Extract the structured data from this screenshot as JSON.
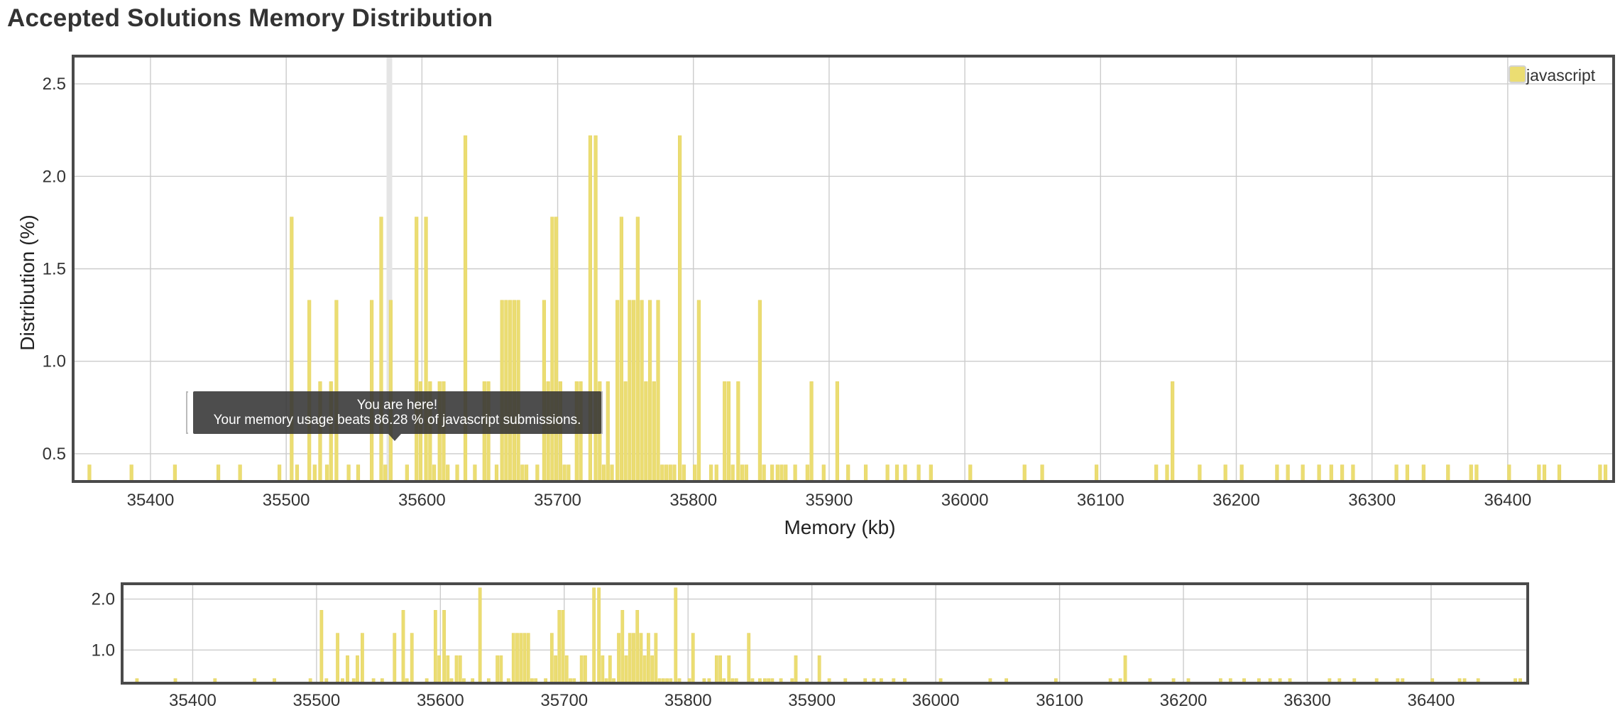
{
  "page": {
    "title": "Accepted Solutions Memory Distribution"
  },
  "tooltip": {
    "line1": "You are here!",
    "line2": "Your memory usage beats 86.28 % of javascript submissions."
  },
  "colors": {
    "bar": "#ebdd72",
    "bar_stroke": "#e6d466",
    "grid": "#cccccc",
    "frame": "#4a4a4a",
    "highlight": "#e5e5e5"
  },
  "chart_data": [
    {
      "type": "bar",
      "role": "main",
      "title": "",
      "xlabel": "Memory (kb)",
      "ylabel": "Distribution (%)",
      "xlim": [
        35343,
        36478
      ],
      "ylim": [
        0.35,
        2.65
      ],
      "xticks": [
        35400,
        35500,
        35600,
        35700,
        35800,
        35900,
        36000,
        36100,
        36200,
        36300,
        36400
      ],
      "yticks": [
        0.5,
        1.0,
        1.5,
        2.0,
        2.5
      ],
      "ytick_labels": [
        "0.5",
        "1.0",
        "1.5",
        "2.0",
        "2.5"
      ],
      "grid": true,
      "legend": {
        "position": "top-right",
        "entries": [
          "javascript"
        ]
      },
      "highlight_x": 35576,
      "bar_width": 2.4,
      "series": [
        {
          "name": "javascript",
          "points": [
            [
              35355,
              0.44
            ],
            [
              35386,
              0.44
            ],
            [
              35418,
              0.44
            ],
            [
              35450,
              0.44
            ],
            [
              35466,
              0.44
            ],
            [
              35495,
              0.44
            ],
            [
              35504,
              1.78
            ],
            [
              35508,
              0.44
            ],
            [
              35517,
              1.33
            ],
            [
              35521,
              0.44
            ],
            [
              35525,
              0.89
            ],
            [
              35530,
              0.44
            ],
            [
              35533,
              0.89
            ],
            [
              35537,
              1.33
            ],
            [
              35546,
              0.44
            ],
            [
              35553,
              0.44
            ],
            [
              35563,
              1.33
            ],
            [
              35570,
              1.78
            ],
            [
              35573,
              0.44
            ],
            [
              35577,
              1.33
            ],
            [
              35589,
              0.44
            ],
            [
              35596,
              1.78
            ],
            [
              35599,
              0.89
            ],
            [
              35603,
              1.78
            ],
            [
              35606,
              0.89
            ],
            [
              35609,
              0.44
            ],
            [
              35613,
              0.89
            ],
            [
              35616,
              0.89
            ],
            [
              35619,
              0.44
            ],
            [
              35626,
              0.44
            ],
            [
              35632,
              2.22
            ],
            [
              35639,
              0.44
            ],
            [
              35646,
              0.89
            ],
            [
              35649,
              0.89
            ],
            [
              35655,
              0.44
            ],
            [
              35659,
              1.33
            ],
            [
              35662,
              1.33
            ],
            [
              35665,
              1.33
            ],
            [
              35668,
              1.33
            ],
            [
              35671,
              1.33
            ],
            [
              35674,
              0.44
            ],
            [
              35677,
              0.44
            ],
            [
              35685,
              0.44
            ],
            [
              35690,
              1.33
            ],
            [
              35693,
              0.89
            ],
            [
              35696,
              1.78
            ],
            [
              35699,
              1.78
            ],
            [
              35702,
              0.89
            ],
            [
              35705,
              0.44
            ],
            [
              35708,
              0.44
            ],
            [
              35714,
              0.89
            ],
            [
              35717,
              0.89
            ],
            [
              35724,
              2.22
            ],
            [
              35728,
              2.22
            ],
            [
              35731,
              0.89
            ],
            [
              35734,
              0.44
            ],
            [
              35737,
              0.89
            ],
            [
              35740,
              0.44
            ],
            [
              35744,
              1.33
            ],
            [
              35747,
              1.78
            ],
            [
              35750,
              0.89
            ],
            [
              35753,
              1.33
            ],
            [
              35756,
              1.33
            ],
            [
              35759,
              1.78
            ],
            [
              35762,
              1.33
            ],
            [
              35765,
              0.89
            ],
            [
              35768,
              1.33
            ],
            [
              35771,
              0.89
            ],
            [
              35774,
              1.33
            ],
            [
              35777,
              0.44
            ],
            [
              35780,
              0.44
            ],
            [
              35783,
              0.44
            ],
            [
              35786,
              0.44
            ],
            [
              35790,
              2.22
            ],
            [
              35793,
              0.44
            ],
            [
              35801,
              0.44
            ],
            [
              35804,
              1.33
            ],
            [
              35813,
              0.44
            ],
            [
              35817,
              0.44
            ],
            [
              35823,
              0.89
            ],
            [
              35826,
              0.89
            ],
            [
              35829,
              0.44
            ],
            [
              35833,
              0.89
            ],
            [
              35836,
              0.44
            ],
            [
              35839,
              0.44
            ],
            [
              35849,
              1.33
            ],
            [
              35852,
              0.44
            ],
            [
              35858,
              0.44
            ],
            [
              35862,
              0.44
            ],
            [
              35865,
              0.44
            ],
            [
              35868,
              0.44
            ],
            [
              35875,
              0.44
            ],
            [
              35884,
              0.44
            ],
            [
              35887,
              0.89
            ],
            [
              35896,
              0.44
            ],
            [
              35906,
              0.89
            ],
            [
              35914,
              0.44
            ],
            [
              35927,
              0.44
            ],
            [
              35943,
              0.44
            ],
            [
              35950,
              0.44
            ],
            [
              35956,
              0.44
            ],
            [
              35966,
              0.44
            ],
            [
              35975,
              0.44
            ],
            [
              36004,
              0.44
            ],
            [
              36044,
              0.44
            ],
            [
              36057,
              0.44
            ],
            [
              36097,
              0.44
            ],
            [
              36141,
              0.44
            ],
            [
              36149,
              0.44
            ],
            [
              36153,
              0.89
            ],
            [
              36173,
              0.44
            ],
            [
              36192,
              0.44
            ],
            [
              36204,
              0.44
            ],
            [
              36230,
              0.44
            ],
            [
              36238,
              0.44
            ],
            [
              36249,
              0.44
            ],
            [
              36261,
              0.44
            ],
            [
              36270,
              0.44
            ],
            [
              36278,
              0.44
            ],
            [
              36286,
              0.44
            ],
            [
              36318,
              0.44
            ],
            [
              36326,
              0.44
            ],
            [
              36338,
              0.44
            ],
            [
              36356,
              0.44
            ],
            [
              36373,
              0.44
            ],
            [
              36377,
              0.44
            ],
            [
              36401,
              0.44
            ],
            [
              36423,
              0.44
            ],
            [
              36427,
              0.44
            ],
            [
              36438,
              0.44
            ],
            [
              36468,
              0.44
            ],
            [
              36472,
              0.44
            ]
          ]
        }
      ]
    },
    {
      "type": "bar",
      "role": "navigator",
      "title": "",
      "xlabel": "",
      "ylabel": "",
      "xlim": [
        35343,
        36478
      ],
      "ylim": [
        0.35,
        2.3
      ],
      "xticks": [
        35400,
        35500,
        35600,
        35700,
        35800,
        35900,
        36000,
        36100,
        36200,
        36300,
        36400
      ],
      "yticks": [
        1.0,
        2.0
      ],
      "ytick_labels": [
        "1.0",
        "2.0"
      ],
      "grid": true,
      "series_ref": "javascript"
    }
  ]
}
